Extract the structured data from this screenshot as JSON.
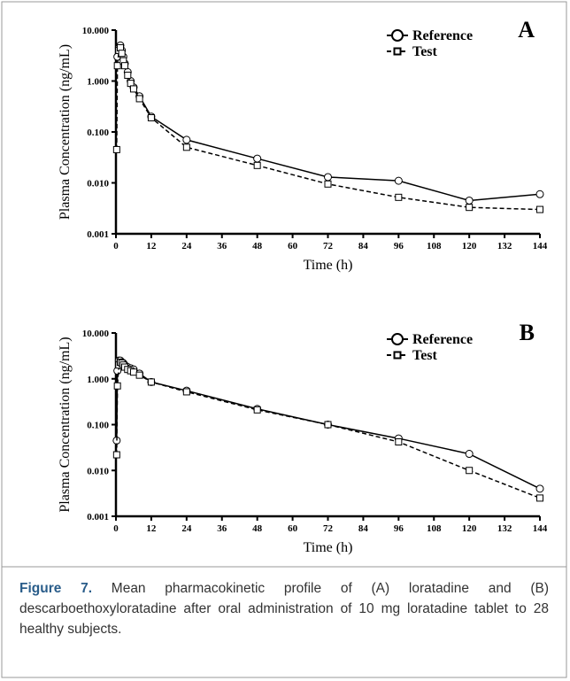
{
  "chart_data": [
    {
      "type": "line",
      "panel": "A",
      "y_label": "Plasma Concentration (ng/mL)",
      "x_label": "Time (h)",
      "log_y": true,
      "x": [
        0.25,
        0.5,
        1,
        1.5,
        2,
        2.5,
        3,
        4,
        5,
        6,
        8,
        12,
        24,
        48,
        72,
        96,
        120,
        144
      ],
      "xlim": [
        0,
        144
      ],
      "xticks": [
        0,
        12,
        24,
        36,
        48,
        60,
        72,
        84,
        96,
        108,
        120,
        132,
        144
      ],
      "ylim": [
        0.001,
        10
      ],
      "yticks": [
        {
          "value": 10,
          "label": "10.000"
        },
        {
          "value": 1,
          "label": "1.000"
        },
        {
          "value": 0.1,
          "label": "0.100"
        },
        {
          "value": 0.01,
          "label": "0.010"
        },
        {
          "value": 0.001,
          "label": "0.001"
        }
      ],
      "series": [
        {
          "name": "Reference",
          "color": "#000000",
          "marker": "circle",
          "dashed": false,
          "values": [
            null,
            3.0,
            4.5,
            5.0,
            4.0,
            3.0,
            2.2,
            1.5,
            1.0,
            0.75,
            0.5,
            0.2,
            0.07,
            0.03,
            0.013,
            0.011,
            0.0045,
            0.006
          ]
        },
        {
          "name": "Test",
          "color": "#000000",
          "marker": "square",
          "dashed": true,
          "values": [
            0.045,
            2.0,
            4.0,
            4.5,
            3.5,
            2.5,
            2.0,
            1.3,
            0.9,
            0.7,
            0.45,
            0.19,
            0.05,
            0.022,
            0.0095,
            0.0052,
            0.0033,
            0.003
          ]
        }
      ]
    },
    {
      "type": "line",
      "panel": "B",
      "y_label": "Plasma Concentration (ng/mL)",
      "x_label": "Time (h)",
      "log_y": true,
      "x": [
        0.25,
        0.5,
        1,
        1.5,
        2,
        2.5,
        3,
        4,
        5,
        6,
        8,
        12,
        24,
        48,
        72,
        96,
        120,
        144
      ],
      "xlim": [
        0,
        144
      ],
      "xticks": [
        0,
        12,
        24,
        36,
        48,
        60,
        72,
        84,
        96,
        108,
        120,
        132,
        144
      ],
      "ylim": [
        0.001,
        10
      ],
      "yticks": [
        {
          "value": 10,
          "label": "10.000"
        },
        {
          "value": 1,
          "label": "1.000"
        },
        {
          "value": 0.1,
          "label": "0.100"
        },
        {
          "value": 0.01,
          "label": "0.010"
        },
        {
          "value": 0.001,
          "label": "0.001"
        }
      ],
      "series": [
        {
          "name": "Reference",
          "color": "#000000",
          "marker": "circle",
          "dashed": false,
          "values": [
            0.045,
            1.5,
            2.5,
            2.5,
            2.3,
            2.2,
            2.0,
            1.8,
            1.7,
            1.6,
            1.3,
            0.85,
            0.55,
            0.22,
            0.1,
            0.05,
            0.023,
            0.004
          ]
        },
        {
          "name": "Test",
          "color": "#000000",
          "marker": "square",
          "dashed": true,
          "values": [
            0.022,
            0.7,
            2.0,
            2.3,
            2.2,
            2.0,
            1.8,
            1.6,
            1.5,
            1.4,
            1.2,
            0.85,
            0.52,
            0.21,
            0.1,
            0.042,
            0.01,
            0.0025
          ]
        }
      ]
    }
  ],
  "caption": {
    "label": "Figure 7.",
    "text": "Mean pharmacokinetic profile of (A) loratadine  and (B) descarboethoxyloratadine after oral administration of 10 mg loratadine tablet to 28 healthy subjects."
  }
}
